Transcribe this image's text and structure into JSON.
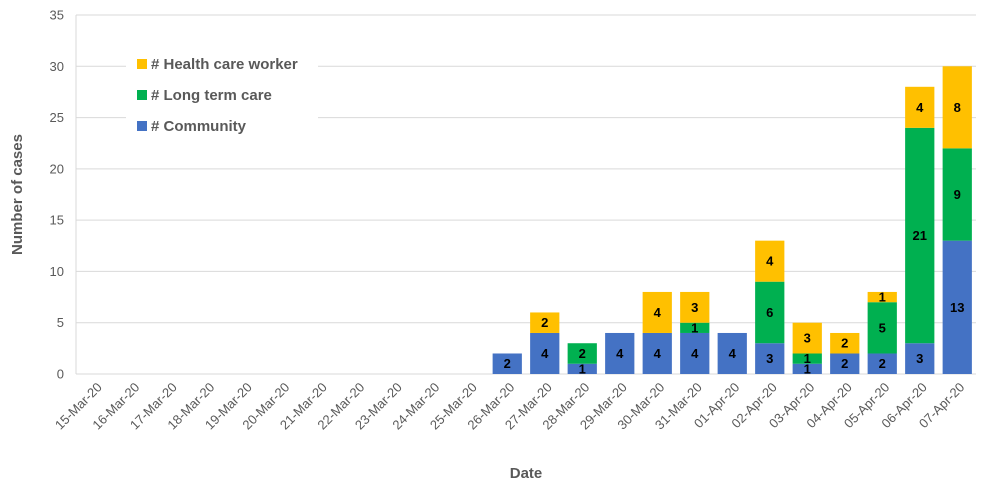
{
  "chart_data": {
    "type": "bar",
    "stacked": true,
    "xlabel": "Date",
    "ylabel": "Number of cases",
    "ylim": [
      0,
      35
    ],
    "yticks": [
      0,
      5,
      10,
      15,
      20,
      25,
      30,
      35
    ],
    "grid": "horizontal",
    "legend_position": "top-left",
    "categories": [
      "15-Mar-20",
      "16-Mar-20",
      "17-Mar-20",
      "18-Mar-20",
      "19-Mar-20",
      "20-Mar-20",
      "21-Mar-20",
      "22-Mar-20",
      "23-Mar-20",
      "24-Mar-20",
      "25-Mar-20",
      "26-Mar-20",
      "27-Mar-20",
      "28-Mar-20",
      "29-Mar-20",
      "30-Mar-20",
      "31-Mar-20",
      "01-Apr-20",
      "02-Apr-20",
      "03-Apr-20",
      "04-Apr-20",
      "05-Apr-20",
      "06-Apr-20",
      "07-Apr-20"
    ],
    "series": [
      {
        "name": "# Community",
        "color": "#4472c4",
        "values": [
          0,
          0,
          0,
          0,
          0,
          0,
          0,
          0,
          0,
          0,
          0,
          2,
          4,
          1,
          4,
          4,
          4,
          4,
          3,
          1,
          2,
          2,
          3,
          13
        ]
      },
      {
        "name": "# Long term care",
        "color": "#00b050",
        "values": [
          0,
          0,
          0,
          0,
          0,
          0,
          0,
          0,
          0,
          0,
          0,
          0,
          0,
          2,
          0,
          0,
          1,
          0,
          6,
          1,
          0,
          5,
          21,
          9
        ]
      },
      {
        "name": "# Health care worker",
        "color": "#ffc000",
        "values": [
          0,
          0,
          0,
          0,
          0,
          0,
          0,
          0,
          0,
          0,
          0,
          0,
          2,
          0,
          0,
          4,
          3,
          0,
          4,
          3,
          2,
          1,
          4,
          8
        ]
      }
    ]
  }
}
